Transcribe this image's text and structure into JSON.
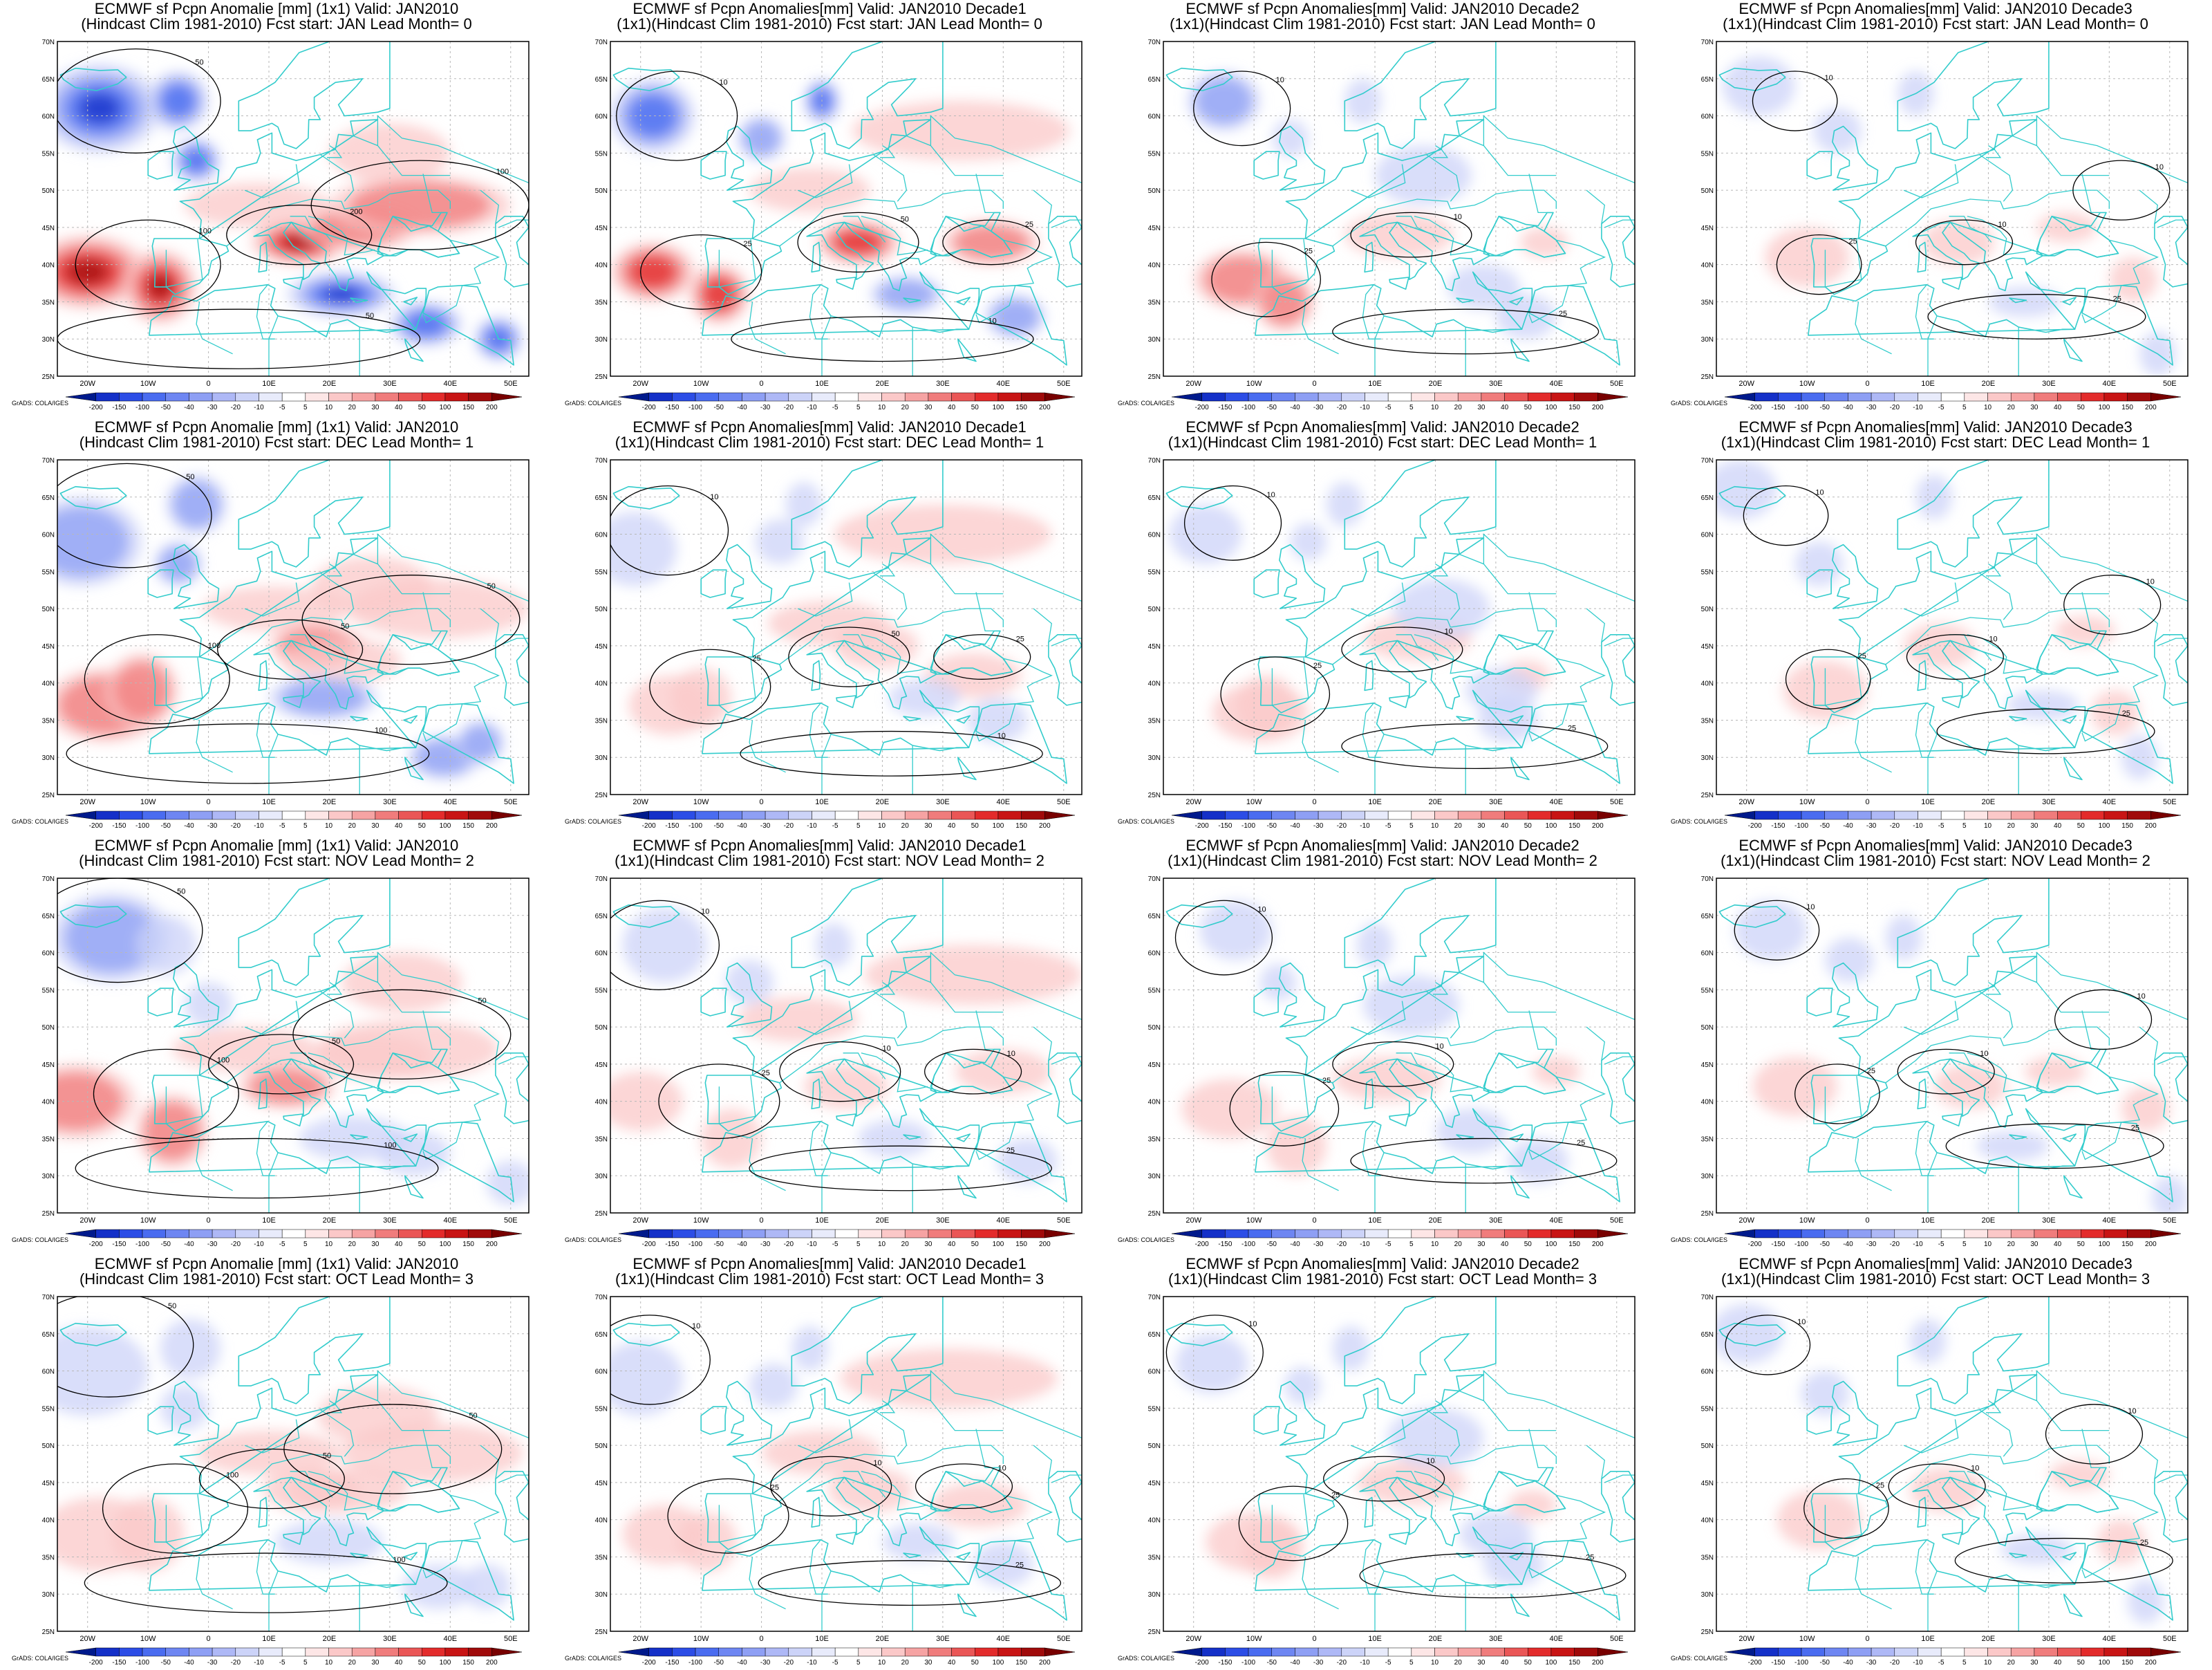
{
  "colorbar": {
    "labels": [
      "-200",
      "-150",
      "-100",
      "-50",
      "-40",
      "-30",
      "-20",
      "-10",
      "-5",
      "5",
      "10",
      "20",
      "30",
      "40",
      "50",
      "100",
      "150",
      "200"
    ],
    "colors": [
      "#001a8c",
      "#1430c8",
      "#2c4de6",
      "#4a6cf0",
      "#6e86f2",
      "#8e9ff4",
      "#aeb8f6",
      "#ccd3f8",
      "#e8ebfb",
      "#ffffff",
      "#fde6e6",
      "#fbc8c8",
      "#f6a3a3",
      "#f07c7c",
      "#ea5656",
      "#e32b2b",
      "#c81414",
      "#a00a0a",
      "#780000"
    ]
  },
  "map": {
    "lon_labels": [
      "20W",
      "10W",
      "0",
      "10E",
      "20E",
      "30E",
      "40E",
      "50E"
    ],
    "lat_labels": [
      "70N",
      "65N",
      "60N",
      "55N",
      "50N",
      "45N",
      "40N",
      "35N",
      "30N",
      "25N"
    ],
    "coast_color": "#33cccc",
    "contour_color": "#000000"
  },
  "credit": "GrADS: COLA/IGES",
  "panels": [
    {
      "line1": "ECMWF sf Pcpn Anomalie [mm] (1x1) Valid: JAN2010",
      "line2": "(Hindcast Clim 1981-2010) Fcst start: JAN  Lead Month= 0",
      "intensity": 1.0,
      "contours": [
        "50",
        "100",
        "200"
      ]
    },
    {
      "line1": "ECMWF sf Pcpn Anomalies[mm] Valid: JAN2010 Decade1",
      "line2": "(1x1)(Hindcast Clim 1981-2010) Fcst start: JAN  Lead Month= 0",
      "intensity": 0.85,
      "contours": [
        "10",
        "25",
        "50"
      ]
    },
    {
      "line1": "ECMWF sf Pcpn Anomalies[mm] Valid: JAN2010 Decade2",
      "line2": "(1x1)(Hindcast Clim 1981-2010) Fcst start: JAN  Lead Month= 0",
      "intensity": 0.6,
      "contours": [
        "10",
        "25"
      ]
    },
    {
      "line1": "ECMWF sf Pcpn Anomalies[mm] Valid: JAN2010 Decade3",
      "line2": "(1x1)(Hindcast Clim 1981-2010) Fcst start: JAN  Lead Month= 0",
      "intensity": 0.45,
      "contours": [
        "10",
        "25"
      ]
    },
    {
      "line1": "ECMWF sf Pcpn Anomalie [mm] (1x1) Valid: JAN2010",
      "line2": "(Hindcast Clim 1981-2010) Fcst start: DEC  Lead Month= 1",
      "intensity": 0.55,
      "contours": [
        "50",
        "100"
      ]
    },
    {
      "line1": "ECMWF sf Pcpn Anomalies[mm] Valid: JAN2010 Decade1",
      "line2": "(1x1)(Hindcast Clim 1981-2010) Fcst start: DEC  Lead Month= 1",
      "intensity": 0.4,
      "contours": [
        "10",
        "25",
        "50"
      ]
    },
    {
      "line1": "ECMWF sf Pcpn Anomalies[mm] Valid: JAN2010 Decade2",
      "line2": "(1x1)(Hindcast Clim 1981-2010) Fcst start: DEC  Lead Month= 1",
      "intensity": 0.25,
      "contours": [
        "10",
        "25"
      ]
    },
    {
      "line1": "ECMWF sf Pcpn Anomalies[mm] Valid: JAN2010 Decade3",
      "line2": "(1x1)(Hindcast Clim 1981-2010) Fcst start: DEC  Lead Month= 1",
      "intensity": 0.35,
      "contours": [
        "10",
        "25"
      ]
    },
    {
      "line1": "ECMWF sf Pcpn Anomalie [mm] (1x1) Valid: JAN2010",
      "line2": "(Hindcast Clim 1981-2010) Fcst start: NOV  Lead Month= 2",
      "intensity": 0.4,
      "contours": [
        "50",
        "100"
      ]
    },
    {
      "line1": "ECMWF sf Pcpn Anomalies[mm] Valid: JAN2010 Decade1",
      "line2": "(1x1)(Hindcast Clim 1981-2010) Fcst start: NOV  Lead Month= 2",
      "intensity": 0.25,
      "contours": [
        "10",
        "25"
      ]
    },
    {
      "line1": "ECMWF sf Pcpn Anomalies[mm] Valid: JAN2010 Decade2",
      "line2": "(1x1)(Hindcast Clim 1981-2010) Fcst start: NOV  Lead Month= 2",
      "intensity": 0.2,
      "contours": [
        "10",
        "25"
      ]
    },
    {
      "line1": "ECMWF sf Pcpn Anomalies[mm] Valid: JAN2010 Decade3",
      "line2": "(1x1)(Hindcast Clim 1981-2010) Fcst start: NOV  Lead Month= 2",
      "intensity": 0.25,
      "contours": [
        "10",
        "25"
      ]
    },
    {
      "line1": "ECMWF sf Pcpn Anomalie [mm] (1x1) Valid: JAN2010",
      "line2": "(Hindcast Clim 1981-2010) Fcst start: OCT  Lead Month= 3",
      "intensity": 0.3,
      "contours": [
        "50",
        "100"
      ]
    },
    {
      "line1": "ECMWF sf Pcpn Anomalies[mm] Valid: JAN2010 Decade1",
      "line2": "(1x1)(Hindcast Clim 1981-2010) Fcst start: OCT  Lead Month= 3",
      "intensity": 0.2,
      "contours": [
        "10",
        "25"
      ]
    },
    {
      "line1": "ECMWF sf Pcpn Anomalies[mm] Valid: JAN2010 Decade2",
      "line2": "(1x1)(Hindcast Clim 1981-2010) Fcst start: OCT  Lead Month= 3",
      "intensity": 0.15,
      "contours": [
        "10",
        "25"
      ]
    },
    {
      "line1": "ECMWF sf Pcpn Anomalies[mm] Valid: JAN2010 Decade3",
      "line2": "(1x1)(Hindcast Clim 1981-2010) Fcst start: OCT  Lead Month= 3",
      "intensity": 0.2,
      "contours": [
        "10",
        "25"
      ]
    }
  ]
}
